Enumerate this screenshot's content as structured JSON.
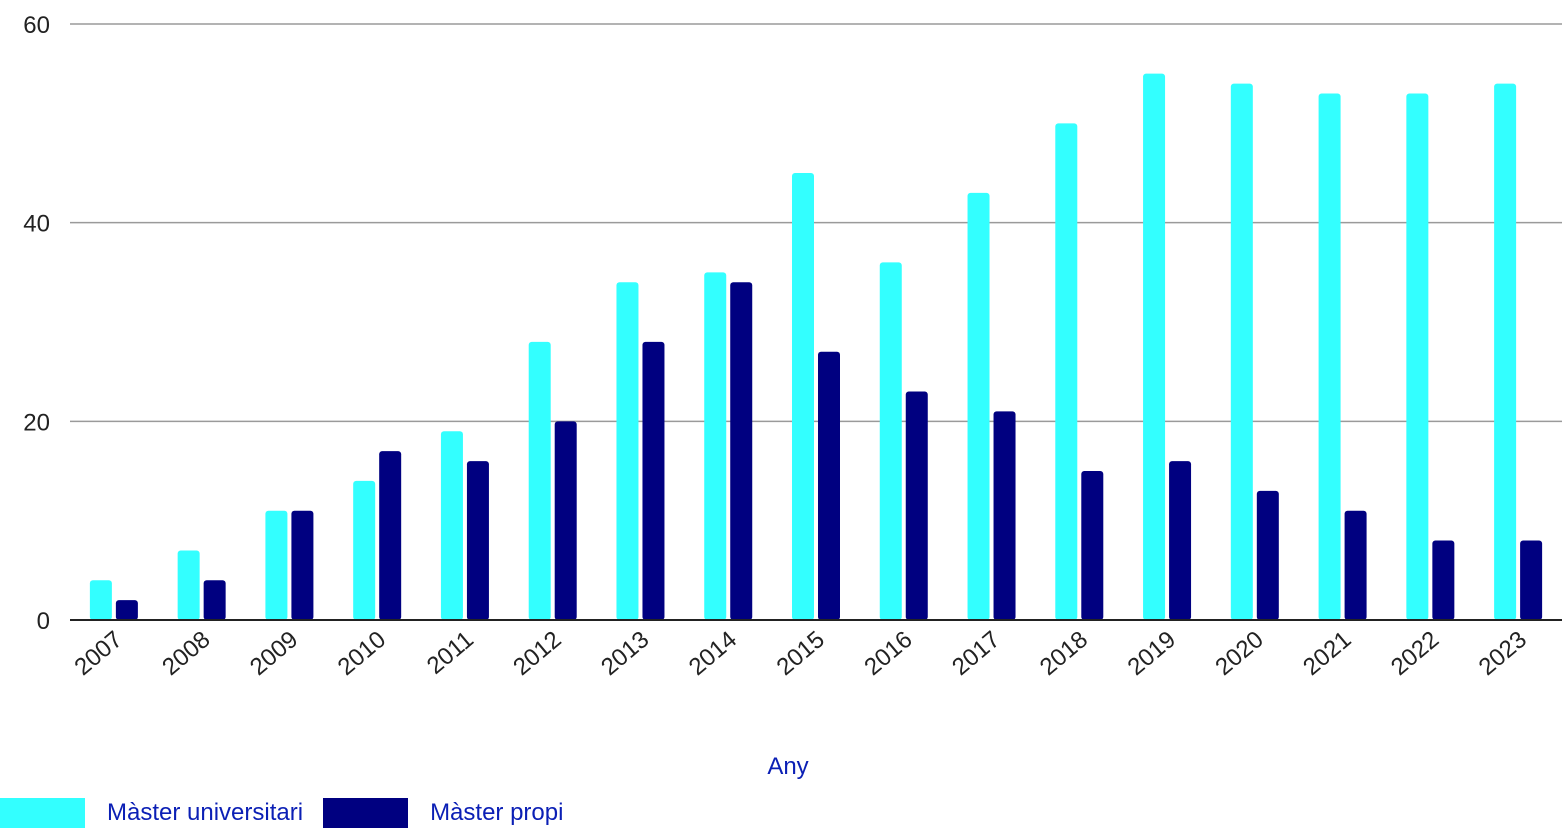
{
  "chart_data": {
    "type": "bar",
    "categories": [
      "2007",
      "2008",
      "2009",
      "2010",
      "2011",
      "2012",
      "2013",
      "2014",
      "2015",
      "2016",
      "2017",
      "2018",
      "2019",
      "2020",
      "2021",
      "2022",
      "2023"
    ],
    "series": [
      {
        "name": "Màster universitari",
        "color": "#33ffff",
        "values": [
          4,
          7,
          11,
          14,
          19,
          28,
          34,
          35,
          45,
          36,
          43,
          50,
          55,
          54,
          53,
          53,
          54
        ]
      },
      {
        "name": "Màster propi",
        "color": "#000080",
        "values": [
          2,
          4,
          11,
          17,
          16,
          20,
          28,
          34,
          27,
          23,
          21,
          15,
          16,
          13,
          11,
          8,
          8
        ]
      }
    ],
    "xlabel": "Any",
    "ylabel": "",
    "ylim": [
      0,
      60
    ],
    "yticks": [
      0,
      20,
      40,
      60
    ],
    "grid": true,
    "legend_position": "bottom-left"
  }
}
